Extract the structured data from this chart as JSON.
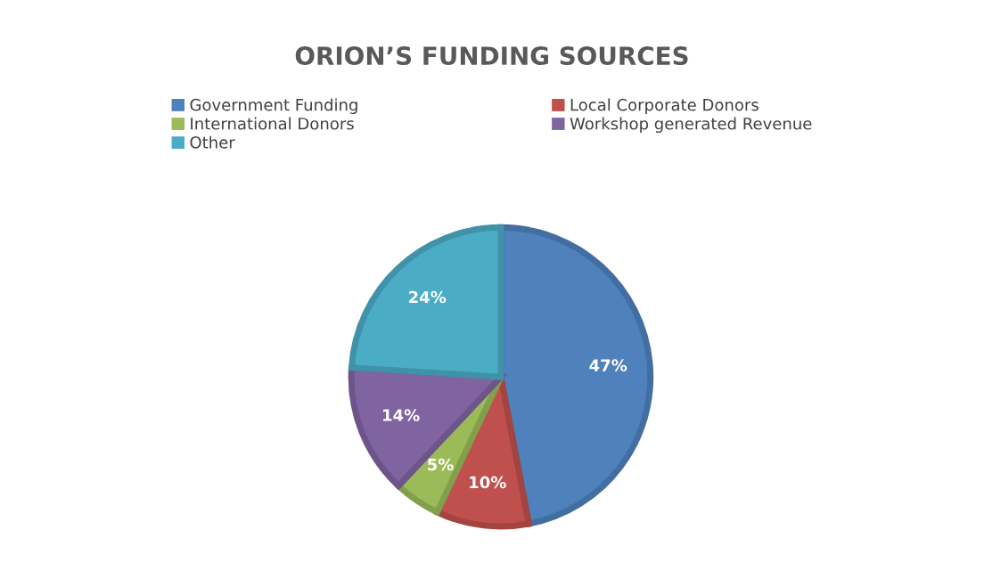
{
  "chart_data": {
    "type": "pie",
    "title": "ORION’S FUNDING SOURCES",
    "categories": [
      "Government Funding",
      "Local Corporate Donors",
      "International Donors",
      "Workshop generated Revenue",
      "Other"
    ],
    "values": [
      47,
      10,
      5,
      14,
      24
    ],
    "colors": [
      "#4f81bd",
      "#c0504d",
      "#9bbb59",
      "#8064a2",
      "#4bacc6"
    ],
    "value_labels": [
      "47%",
      "10%",
      "5%",
      "14%",
      "24%"
    ],
    "legend": "top"
  }
}
